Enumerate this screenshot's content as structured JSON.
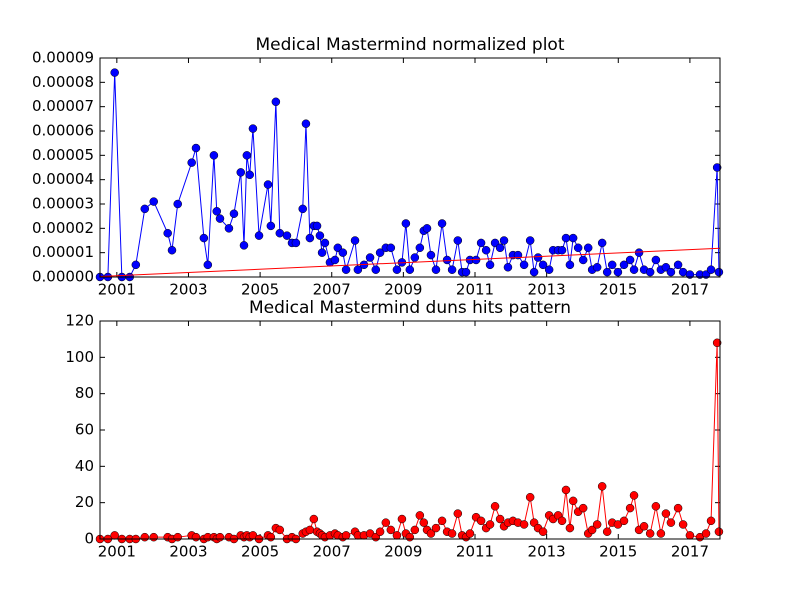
{
  "chart_data": [
    {
      "type": "line",
      "title": "Medical Mastermind normalized plot",
      "markers": true,
      "xlim": [
        2000.53,
        2017.84
      ],
      "xticks": [
        2001,
        2003,
        2005,
        2007,
        2009,
        2011,
        2013,
        2015,
        2017
      ],
      "ylim": [
        0,
        9e-05
      ],
      "yticks": [
        {
          "value": 0,
          "label": "0.00000"
        },
        {
          "value": 1e-05,
          "label": "0.00001"
        },
        {
          "value": 2e-05,
          "label": "0.00002"
        },
        {
          "value": 3e-05,
          "label": "0.00003"
        },
        {
          "value": 4e-05,
          "label": "0.00004"
        },
        {
          "value": 5e-05,
          "label": "0.00005"
        },
        {
          "value": 6e-05,
          "label": "0.00006"
        },
        {
          "value": 7e-05,
          "label": "0.00007"
        },
        {
          "value": 8e-05,
          "label": "0.00008"
        },
        {
          "value": 9e-05,
          "label": "0.00009"
        }
      ],
      "x": [
        2000.53,
        2000.75,
        2000.94,
        2001.14,
        2001.36,
        2001.53,
        2001.78,
        2002.03,
        2002.42,
        2002.54,
        2002.7,
        2003.09,
        2003.21,
        2003.43,
        2003.54,
        2003.71,
        2003.79,
        2003.88,
        2004.13,
        2004.27,
        2004.46,
        2004.55,
        2004.63,
        2004.71,
        2004.8,
        2004.97,
        2005.22,
        2005.3,
        2005.44,
        2005.55,
        2005.75,
        2005.89,
        2006.0,
        2006.19,
        2006.28,
        2006.39,
        2006.5,
        2006.59,
        2006.67,
        2006.73,
        2006.81,
        2006.95,
        2007.09,
        2007.17,
        2007.31,
        2007.4,
        2007.65,
        2007.73,
        2007.9,
        2008.07,
        2008.23,
        2008.35,
        2008.51,
        2008.65,
        2008.82,
        2008.96,
        2009.07,
        2009.18,
        2009.32,
        2009.46,
        2009.57,
        2009.66,
        2009.77,
        2009.91,
        2010.08,
        2010.22,
        2010.36,
        2010.52,
        2010.64,
        2010.75,
        2010.86,
        2011.03,
        2011.17,
        2011.31,
        2011.42,
        2011.56,
        2011.7,
        2011.81,
        2011.92,
        2012.06,
        2012.2,
        2012.37,
        2012.54,
        2012.65,
        2012.76,
        2012.9,
        2013.07,
        2013.18,
        2013.32,
        2013.43,
        2013.54,
        2013.65,
        2013.74,
        2013.88,
        2014.02,
        2014.16,
        2014.27,
        2014.41,
        2014.55,
        2014.69,
        2014.83,
        2014.99,
        2015.16,
        2015.33,
        2015.44,
        2015.58,
        2015.72,
        2015.89,
        2016.05,
        2016.19,
        2016.33,
        2016.47,
        2016.67,
        2016.81,
        2017.0,
        2017.28,
        2017.45,
        2017.59,
        2017.76,
        2017.81
      ],
      "series": [
        {
          "color": "#0000ff",
          "values": [
            0,
            0,
            8.4e-05,
            0,
            0,
            5e-06,
            2.8e-05,
            3.1e-05,
            1.8e-05,
            1.1e-05,
            3e-05,
            4.7e-05,
            5.3e-05,
            1.6e-05,
            5e-06,
            5e-05,
            2.7e-05,
            2.4e-05,
            2e-05,
            2.6e-05,
            4.3e-05,
            1.3e-05,
            5e-05,
            4.2e-05,
            6.1e-05,
            1.7e-05,
            3.8e-05,
            2.1e-05,
            7.2e-05,
            1.8e-05,
            1.7e-05,
            1.4e-05,
            1.4e-05,
            2.8e-05,
            6.3e-05,
            1.6e-05,
            2.1e-05,
            2.1e-05,
            1.7e-05,
            1e-05,
            1.4e-05,
            6e-06,
            7e-06,
            1.2e-05,
            1e-05,
            3e-06,
            1.5e-05,
            3e-06,
            5e-06,
            8e-06,
            3e-06,
            1e-05,
            1.2e-05,
            1.2e-05,
            3e-06,
            6e-06,
            2.2e-05,
            3e-06,
            8e-06,
            1.2e-05,
            1.9e-05,
            2e-05,
            9e-06,
            3e-06,
            2.2e-05,
            7e-06,
            3e-06,
            1.5e-05,
            2e-06,
            2e-06,
            7e-06,
            7e-06,
            1.4e-05,
            1.1e-05,
            5e-06,
            1.4e-05,
            1.2e-05,
            1.5e-05,
            4e-06,
            9e-06,
            9e-06,
            5e-06,
            1.5e-05,
            2e-06,
            8e-06,
            5e-06,
            3e-06,
            1.1e-05,
            1.1e-05,
            1.1e-05,
            1.6e-05,
            5e-06,
            1.6e-05,
            1.2e-05,
            7e-06,
            1.2e-05,
            3e-06,
            4e-06,
            1.4e-05,
            2e-06,
            5e-06,
            2e-06,
            5e-06,
            7e-06,
            3e-06,
            1e-05,
            3e-06,
            2e-06,
            7e-06,
            3e-06,
            4e-06,
            2e-06,
            5e-06,
            2e-06,
            1e-06,
            1e-06,
            1e-06,
            3e-06,
            4.5e-05,
            2e-06
          ]
        }
      ],
      "trend": {
        "color": "#ff0000",
        "x": [
          2000.53,
          2017.84
        ],
        "values": [
          2e-07,
          1.18e-05
        ]
      }
    },
    {
      "type": "line",
      "title": "Medical Mastermind duns hits pattern",
      "markers": true,
      "xlim": [
        2000.53,
        2017.84
      ],
      "xticks": [
        2001,
        2003,
        2005,
        2007,
        2009,
        2011,
        2013,
        2015,
        2017
      ],
      "ylim": [
        0,
        120
      ],
      "yticks": [
        0,
        20,
        40,
        60,
        80,
        100,
        120
      ],
      "x": [
        2000.53,
        2000.75,
        2000.94,
        2001.14,
        2001.36,
        2001.53,
        2001.78,
        2002.03,
        2002.42,
        2002.54,
        2002.7,
        2003.09,
        2003.21,
        2003.43,
        2003.54,
        2003.71,
        2003.79,
        2003.88,
        2004.13,
        2004.27,
        2004.46,
        2004.55,
        2004.63,
        2004.71,
        2004.8,
        2004.97,
        2005.22,
        2005.3,
        2005.44,
        2005.55,
        2005.75,
        2005.89,
        2006.0,
        2006.19,
        2006.28,
        2006.39,
        2006.5,
        2006.59,
        2006.67,
        2006.73,
        2006.81,
        2006.95,
        2007.09,
        2007.17,
        2007.31,
        2007.4,
        2007.65,
        2007.73,
        2007.9,
        2008.07,
        2008.23,
        2008.35,
        2008.51,
        2008.65,
        2008.82,
        2008.96,
        2009.07,
        2009.18,
        2009.32,
        2009.46,
        2009.57,
        2009.66,
        2009.77,
        2009.91,
        2010.08,
        2010.22,
        2010.36,
        2010.52,
        2010.64,
        2010.75,
        2010.86,
        2011.03,
        2011.17,
        2011.31,
        2011.42,
        2011.56,
        2011.7,
        2011.81,
        2011.92,
        2012.06,
        2012.2,
        2012.37,
        2012.54,
        2012.65,
        2012.76,
        2012.9,
        2013.07,
        2013.18,
        2013.32,
        2013.43,
        2013.54,
        2013.65,
        2013.74,
        2013.88,
        2014.02,
        2014.16,
        2014.27,
        2014.41,
        2014.55,
        2014.69,
        2014.83,
        2014.99,
        2015.16,
        2015.33,
        2015.44,
        2015.58,
        2015.72,
        2015.89,
        2016.05,
        2016.19,
        2016.33,
        2016.47,
        2016.67,
        2016.81,
        2017.0,
        2017.28,
        2017.45,
        2017.59,
        2017.76,
        2017.81
      ],
      "series": [
        {
          "color": "#ff0000",
          "values": [
            0,
            0,
            2,
            0,
            0,
            0,
            1,
            1,
            1,
            0,
            1,
            2,
            1,
            0,
            1,
            1,
            0,
            1,
            1,
            0,
            2,
            1,
            2,
            1,
            2,
            0,
            2,
            1,
            6,
            5,
            0,
            1,
            0,
            3,
            4,
            5,
            11,
            4,
            3,
            2,
            1,
            2,
            3,
            2,
            1,
            2,
            4,
            2,
            2,
            3,
            1,
            4,
            9,
            5,
            2,
            11,
            3,
            1,
            5,
            13,
            9,
            5,
            3,
            6,
            10,
            4,
            3,
            14,
            2,
            1,
            3,
            12,
            10,
            6,
            8,
            18,
            11,
            7,
            9,
            10,
            9,
            8,
            23,
            9,
            6,
            4,
            13,
            11,
            13,
            10,
            27,
            6,
            21,
            15,
            17,
            3,
            5,
            8,
            29,
            4,
            9,
            8,
            10,
            17,
            24,
            5,
            7,
            3,
            18,
            3,
            14,
            9,
            17,
            8,
            2,
            1,
            3,
            10,
            108,
            4
          ]
        }
      ]
    }
  ]
}
